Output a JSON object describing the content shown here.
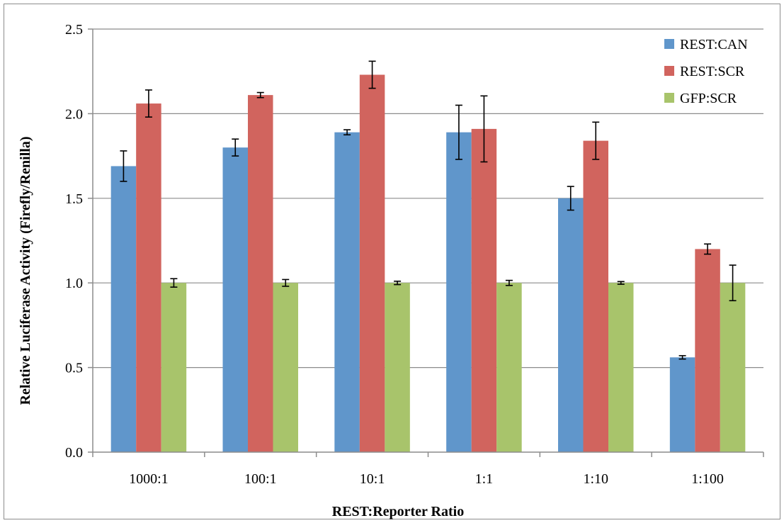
{
  "chart_data": {
    "type": "bar",
    "categories": [
      "1000:1",
      "100:1",
      "10:1",
      "1:1",
      "1:10",
      "1:100"
    ],
    "series": [
      {
        "name": "REST:CAN",
        "color": "#6096cb",
        "values": [
          1.69,
          1.8,
          1.89,
          1.89,
          1.5,
          0.56
        ],
        "errors": [
          0.09,
          0.05,
          0.015,
          0.16,
          0.07,
          0.01
        ]
      },
      {
        "name": "REST:SCR",
        "color": "#d1645e",
        "values": [
          2.06,
          2.11,
          2.23,
          1.91,
          1.84,
          1.2
        ],
        "errors": [
          0.08,
          0.015,
          0.08,
          0.195,
          0.11,
          0.03
        ]
      },
      {
        "name": "GFP:SCR",
        "color": "#a8c46b",
        "values": [
          1.0,
          1.0,
          1.0,
          1.0,
          1.0,
          1.0
        ],
        "errors": [
          0.025,
          0.02,
          0.01,
          0.015,
          0.008,
          0.105
        ]
      }
    ],
    "yticks": [
      "0.0",
      "0.5",
      "1.0",
      "1.5",
      "2.0",
      "2.5"
    ],
    "ylim": [
      0,
      2.5
    ],
    "xlabel": "REST:Reporter Ratio",
    "ylabel": "Relative Luciferase Activity (Firefly/Renilla)",
    "grid": true,
    "legend_position": "top-right"
  }
}
